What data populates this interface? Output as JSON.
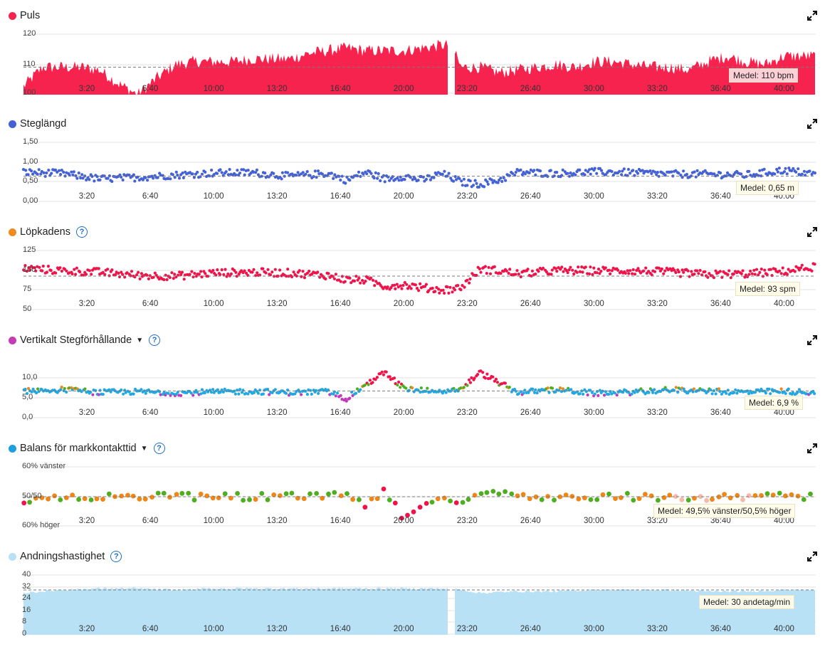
{
  "colors": {
    "puls": "#f5234d",
    "steglangd": "#4462d6",
    "lopkadens": "#f08a1e",
    "vertikalt": "#c73ab5",
    "balans": "#1ea0e0",
    "andning": "#b8e1f6",
    "zone_red": "#f0134a",
    "zone_orange": "#ee8718",
    "zone_green": "#4fae1f",
    "zone_blue": "#22a7e2",
    "zone_purple": "#c23ab9",
    "zone_peach": "#f7b9a6",
    "grid": "#e2e2e2",
    "mean_line": "#7a7a7a",
    "help": "#1f6fc5"
  },
  "icons": {
    "expand": "expand-arrows-icon",
    "help": "question-circle-icon",
    "dropdown": "caret-down-icon"
  },
  "chart_data": [
    {
      "title": "Puls",
      "type": "area",
      "ylim": [
        100,
        122
      ],
      "yticks": [
        "120",
        "110",
        "100"
      ],
      "xticks": [
        "3:20",
        "6:40",
        "10:00",
        "13:20",
        "16:40",
        "20:00",
        "23:20",
        "26:40",
        "30:00",
        "33:20",
        "36:40",
        "40:00"
      ],
      "x": [
        "0:00",
        "1:00",
        "2:00",
        "3:00",
        "4:00",
        "5:00",
        "6:00",
        "7:00",
        "8:00",
        "9:00",
        "10:00",
        "11:00",
        "12:00",
        "13:00",
        "14:00",
        "15:00",
        "16:00",
        "17:00",
        "18:00",
        "19:00",
        "20:00",
        "21:00",
        "22:00",
        "22:30",
        "23:00",
        "24:00",
        "25:00",
        "26:00",
        "27:00",
        "28:00",
        "29:00",
        "30:00",
        "31:00",
        "32:00",
        "33:00",
        "34:00",
        "35:00",
        "36:00",
        "37:00",
        "38:00",
        "39:00",
        "40:00",
        "41:00",
        "41:40"
      ],
      "values": [
        103,
        110,
        110,
        110,
        109,
        104,
        100,
        106,
        111,
        112,
        112,
        112,
        113,
        113,
        113,
        115,
        116,
        117,
        116,
        116,
        116,
        117,
        118,
        118,
        110,
        110,
        108,
        109,
        110,
        111,
        110,
        112,
        112,
        111,
        110,
        110,
        109,
        112,
        114,
        112,
        111,
        114,
        114,
        114
      ],
      "mean_value": 110,
      "mean_label": "Medel: 110 bpm"
    },
    {
      "title": "Steglängd",
      "type": "scatter",
      "ylim": [
        0,
        1.5
      ],
      "yticks": [
        "1,50",
        "1,00",
        "0,50",
        "0,00"
      ],
      "xticks": [
        "3:20",
        "6:40",
        "10:00",
        "13:20",
        "16:40",
        "20:00",
        "23:20",
        "26:40",
        "30:00",
        "33:20",
        "36:40",
        "40:00"
      ],
      "x": [
        "0:00",
        "2:00",
        "4:00",
        "6:00",
        "8:00",
        "10:00",
        "12:00",
        "14:00",
        "16:00",
        "17:00",
        "18:00",
        "19:00",
        "20:00",
        "21:00",
        "22:00",
        "23:00",
        "24:00",
        "25:00",
        "26:00",
        "28:00",
        "30:00",
        "32:00",
        "34:00",
        "36:00",
        "38:00",
        "40:00",
        "41:40"
      ],
      "values": [
        0.75,
        0.72,
        0.58,
        0.62,
        0.68,
        0.73,
        0.74,
        0.65,
        0.72,
        0.55,
        0.75,
        0.58,
        0.65,
        0.55,
        0.72,
        0.5,
        0.45,
        0.55,
        0.75,
        0.72,
        0.76,
        0.74,
        0.7,
        0.7,
        0.68,
        0.8,
        0.7
      ],
      "mean_value": 0.65,
      "mean_label": "Medel: 0,65 m"
    },
    {
      "title": "Löpkadens",
      "type": "scatter",
      "ylim": [
        50,
        125
      ],
      "yticks": [
        "125",
        "100",
        "75",
        "50"
      ],
      "xticks": [
        "3:20",
        "6:40",
        "10:00",
        "13:20",
        "16:40",
        "20:00",
        "23:20",
        "26:40",
        "30:00",
        "33:20",
        "36:40",
        "40:00"
      ],
      "x": [
        "0:00",
        "2:00",
        "4:00",
        "6:00",
        "8:00",
        "10:00",
        "12:00",
        "14:00",
        "16:00",
        "17:00",
        "18:00",
        "19:00",
        "20:00",
        "21:00",
        "22:00",
        "23:00",
        "24:00",
        "25:00",
        "26:00",
        "28:00",
        "30:00",
        "32:00",
        "34:00",
        "36:00",
        "38:00",
        "40:00",
        "41:40"
      ],
      "values": [
        103,
        100,
        98,
        94,
        93,
        97,
        98,
        97,
        94,
        88,
        88,
        80,
        82,
        78,
        75,
        78,
        102,
        100,
        96,
        100,
        100,
        100,
        98,
        95,
        96,
        99,
        105
      ],
      "mean_value": 93,
      "mean_label": "Medel: 93 spm"
    },
    {
      "title": "Vertikalt Stegförhållande",
      "type": "scatter",
      "ylim": [
        0,
        15
      ],
      "yticks": [
        "10,0",
        "5,0",
        "0,0"
      ],
      "xticks": [
        "3:20",
        "6:40",
        "10:00",
        "13:20",
        "16:40",
        "20:00",
        "23:20",
        "26:40",
        "30:00",
        "33:20",
        "36:40",
        "40:00"
      ],
      "x": [
        "0:00",
        "2:00",
        "4:00",
        "6:00",
        "8:00",
        "10:00",
        "12:00",
        "14:00",
        "16:00",
        "17:00",
        "18:00",
        "19:00",
        "20:00",
        "21:00",
        "22:00",
        "23:00",
        "24:00",
        "25:00",
        "26:00",
        "28:00",
        "30:00",
        "32:00",
        "34:00",
        "36:00",
        "38:00",
        "40:00",
        "41:40"
      ],
      "values": [
        6.9,
        7.2,
        6.5,
        6.7,
        6.4,
        6.6,
        6.8,
        6.5,
        6.7,
        5.0,
        8.5,
        11.5,
        7.5,
        7.0,
        6.8,
        7.3,
        11.5,
        9.0,
        6.5,
        7.2,
        6.3,
        6.6,
        7.2,
        6.8,
        6.6,
        6.8,
        6.5
      ],
      "mean_value": 6.9,
      "mean_label": "Medel: 6,9 %"
    },
    {
      "title": "Balans för markkontakttid",
      "type": "scatter",
      "ylim": [
        40,
        60
      ],
      "yticks": [
        "60% vänster",
        "50/50",
        "60% höger"
      ],
      "xticks": [
        "3:20",
        "6:40",
        "10:00",
        "13:20",
        "16:40",
        "20:00",
        "23:20",
        "26:40",
        "30:00",
        "33:20",
        "36:40",
        "40:00"
      ],
      "x": [
        "0:00",
        "2:00",
        "4:00",
        "6:00",
        "8:00",
        "10:00",
        "12:00",
        "14:00",
        "16:00",
        "17:00",
        "18:00",
        "19:00",
        "20:00",
        "21:00",
        "22:00",
        "23:00",
        "24:00",
        "25:00",
        "26:00",
        "28:00",
        "30:00",
        "32:00",
        "34:00",
        "36:00",
        "38:00",
        "40:00",
        "41:40"
      ],
      "values": [
        49.0,
        50.0,
        50.0,
        50.0,
        50.0,
        50.0,
        50.0,
        50.0,
        50.0,
        51.0,
        47.0,
        52.0,
        43.0,
        48.0,
        49.0,
        48.0,
        52.0,
        51.0,
        50.0,
        50.0,
        50.0,
        50.0,
        50.0,
        49.5,
        50.0,
        50.0,
        50.0
      ],
      "mean_value": 50,
      "mean_label": "Medel: 49,5% vänster/50,5% höger"
    },
    {
      "title": "Andningshastighet",
      "type": "area",
      "ylim": [
        0,
        40
      ],
      "yticks": [
        "40",
        "32",
        "24",
        "16",
        "8",
        "0"
      ],
      "xticks": [
        "3:20",
        "6:40",
        "10:00",
        "13:20",
        "16:40",
        "20:00",
        "23:20",
        "26:40",
        "30:00",
        "33:20",
        "36:40",
        "40:00"
      ],
      "x": [
        "0:00",
        "2:00",
        "4:00",
        "6:00",
        "8:00",
        "10:00",
        "12:00",
        "14:00",
        "16:00",
        "18:00",
        "20:00",
        "22:00",
        "22:30",
        "23:00",
        "24:00",
        "26:00",
        "28:00",
        "30:00",
        "32:00",
        "34:00",
        "36:00",
        "38:00",
        "40:00",
        "41:40"
      ],
      "values": [
        28,
        30,
        31,
        31,
        30,
        31,
        31,
        31,
        31,
        31,
        31,
        31,
        31,
        30,
        28,
        29,
        29,
        30,
        30,
        30,
        29,
        29,
        30,
        30
      ],
      "mean_value": 30,
      "mean_label": "Medel: 30 andetag/min"
    }
  ]
}
